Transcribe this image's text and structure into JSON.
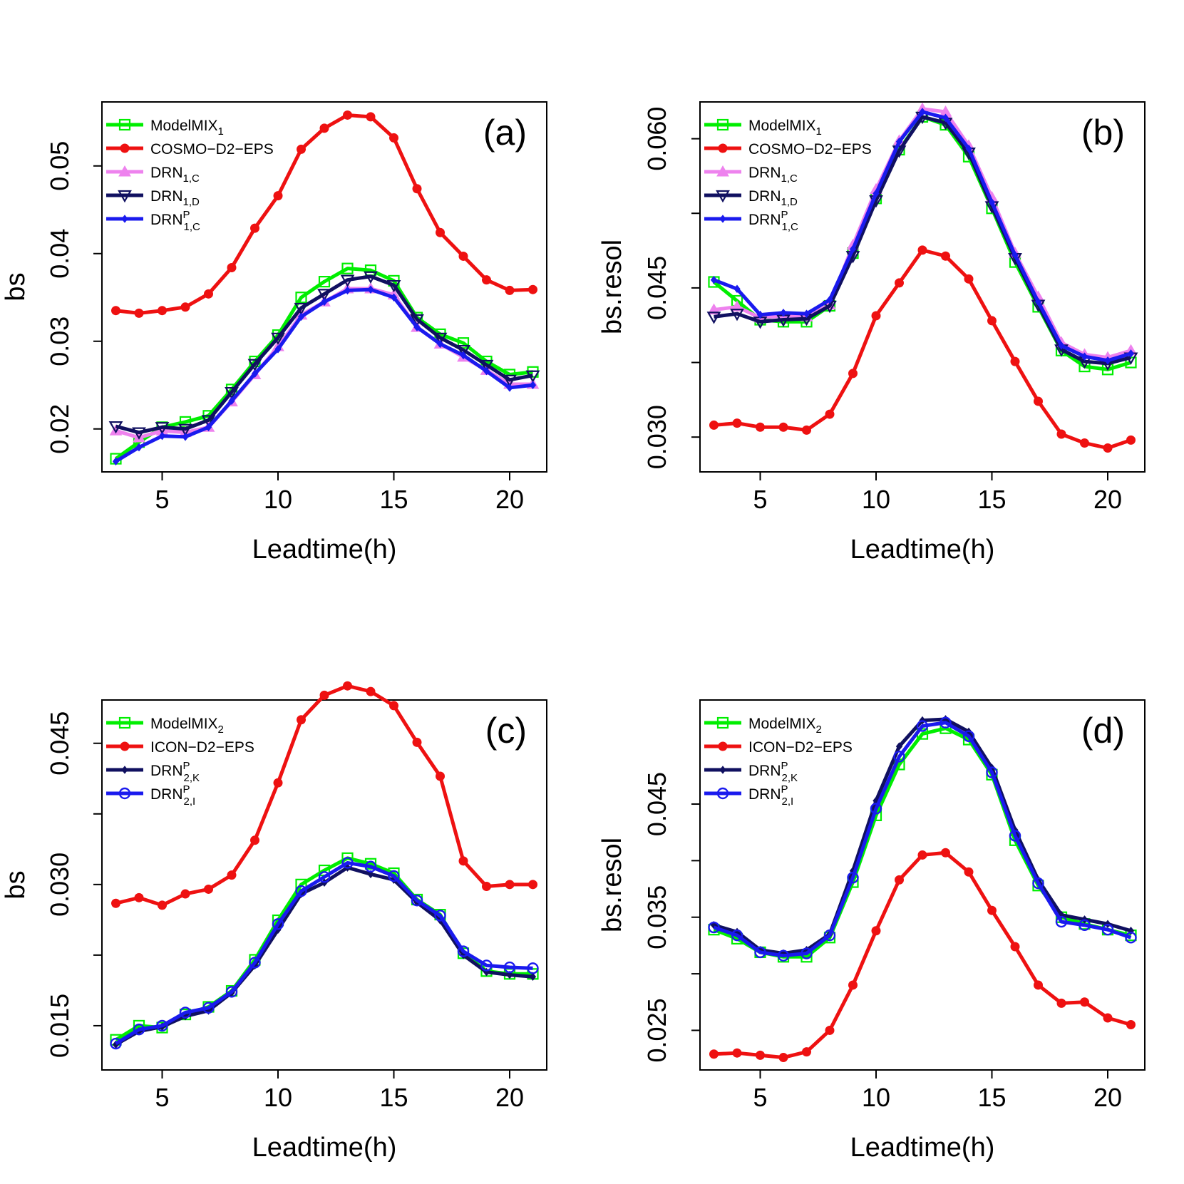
{
  "chart_data": [
    {
      "type": "line",
      "panel_label": "(a)",
      "xlabel": "Leadtime(h)",
      "ylabel": "bs",
      "x": [
        3,
        4,
        5,
        6,
        7,
        8,
        9,
        10,
        11,
        12,
        13,
        14,
        15,
        16,
        17,
        18,
        19,
        20,
        21
      ],
      "xticks": [
        5,
        10,
        15,
        20
      ],
      "yticks": [
        "0.02",
        "0.03",
        "0.04",
        "0.05"
      ],
      "xlim": [
        2.4,
        21.6
      ],
      "ylim": [
        0.0151,
        0.0573
      ],
      "legend_position": "top-left",
      "series": [
        {
          "name": "ModelMIX",
          "sub": "1",
          "sup": "",
          "color": "#00ee00",
          "marker": "square-open",
          "values": [
            0.0166,
            0.0185,
            0.0202,
            0.0208,
            0.0215,
            0.0245,
            0.0277,
            0.0307,
            0.035,
            0.0368,
            0.0383,
            0.0381,
            0.0369,
            0.0327,
            0.0308,
            0.0298,
            0.0277,
            0.0262,
            0.0265
          ]
        },
        {
          "name": "COSMO−D2−EPS",
          "sub": "",
          "sup": "",
          "color": "#ee1111",
          "marker": "circle-filled",
          "values": [
            0.0335,
            0.0332,
            0.0335,
            0.0339,
            0.0354,
            0.0384,
            0.0429,
            0.0466,
            0.0519,
            0.0543,
            0.0558,
            0.0556,
            0.0532,
            0.0474,
            0.0424,
            0.0397,
            0.037,
            0.0358,
            0.0359
          ]
        },
        {
          "name": "DRN",
          "sub": "1,C",
          "sup": "",
          "color": "#ee82ee",
          "marker": "triangle-up-filled",
          "values": [
            0.0198,
            0.019,
            0.0198,
            0.0196,
            0.0202,
            0.0231,
            0.0262,
            0.0294,
            0.033,
            0.0345,
            0.036,
            0.036,
            0.0353,
            0.0316,
            0.0297,
            0.0282,
            0.0267,
            0.0251,
            0.0251
          ]
        },
        {
          "name": "DRN",
          "sub": "1,D",
          "sup": "",
          "color": "#101060",
          "marker": "triangle-down-open",
          "values": [
            0.0203,
            0.0196,
            0.0202,
            0.02,
            0.021,
            0.0242,
            0.0274,
            0.0304,
            0.0338,
            0.0354,
            0.037,
            0.0374,
            0.0364,
            0.0325,
            0.0304,
            0.029,
            0.0273,
            0.0256,
            0.0261
          ]
        },
        {
          "name": "DRN",
          "sub": "1,C",
          "sup": "P",
          "color": "#1a1aee",
          "marker": "diamond-small",
          "values": [
            0.0163,
            0.0179,
            0.0192,
            0.0191,
            0.0202,
            0.0232,
            0.0263,
            0.0291,
            0.0328,
            0.0345,
            0.0358,
            0.0359,
            0.035,
            0.0316,
            0.0297,
            0.0284,
            0.0266,
            0.0247,
            0.025
          ]
        }
      ]
    },
    {
      "type": "line",
      "panel_label": "(b)",
      "xlabel": "Leadtime(h)",
      "ylabel": "bs.resol",
      "x": [
        3,
        4,
        5,
        6,
        7,
        8,
        9,
        10,
        11,
        12,
        13,
        14,
        15,
        16,
        17,
        18,
        19,
        20,
        21
      ],
      "xticks": [
        5,
        10,
        15,
        20
      ],
      "yticks": [
        "0.030",
        "",
        "0.045",
        "",
        "0.060"
      ],
      "ytick_values": [
        0.03,
        0.0375,
        0.045,
        0.0525,
        0.06
      ],
      "xlim": [
        2.4,
        21.6
      ],
      "ylim": [
        0.0265,
        0.0637
      ],
      "legend_position": "top-left",
      "series": [
        {
          "name": "ModelMIX",
          "sub": "1",
          "sup": "",
          "color": "#00ee00",
          "marker": "square-open",
          "values": [
            0.0456,
            0.0437,
            0.0418,
            0.0416,
            0.0416,
            0.0432,
            0.0485,
            0.054,
            0.0589,
            0.0622,
            0.0614,
            0.0582,
            0.053,
            0.0476,
            0.0431,
            0.0387,
            0.0371,
            0.0368,
            0.0375
          ]
        },
        {
          "name": "COSMO−D2−EPS",
          "sub": "",
          "sup": "",
          "color": "#ee1111",
          "marker": "circle-filled",
          "values": [
            0.0312,
            0.0314,
            0.031,
            0.031,
            0.0307,
            0.0323,
            0.0364,
            0.0422,
            0.0455,
            0.0488,
            0.0482,
            0.0459,
            0.0417,
            0.0376,
            0.0336,
            0.0303,
            0.0294,
            0.0289,
            0.0297
          ]
        },
        {
          "name": "DRN",
          "sub": "1,C",
          "sup": "",
          "color": "#ee82ee",
          "marker": "triangle-up-filled",
          "values": [
            0.0428,
            0.0431,
            0.042,
            0.0422,
            0.0421,
            0.0433,
            0.0493,
            0.0549,
            0.0598,
            0.063,
            0.0627,
            0.0593,
            0.0541,
            0.0485,
            0.0441,
            0.0395,
            0.0383,
            0.038,
            0.0387
          ]
        },
        {
          "name": "DRN",
          "sub": "1,D",
          "sup": "",
          "color": "#101060",
          "marker": "triangle-down-open",
          "values": [
            0.0421,
            0.0424,
            0.0416,
            0.0418,
            0.0419,
            0.0432,
            0.0482,
            0.0538,
            0.0588,
            0.0622,
            0.0616,
            0.0586,
            0.0532,
            0.048,
            0.0433,
            0.0388,
            0.0376,
            0.0374,
            0.038
          ]
        },
        {
          "name": "DRN",
          "sub": "1,C",
          "sup": "P",
          "color": "#1a1aee",
          "marker": "diamond-small",
          "values": [
            0.0458,
            0.0449,
            0.0423,
            0.0425,
            0.0424,
            0.0438,
            0.0489,
            0.0545,
            0.0597,
            0.0627,
            0.0621,
            0.059,
            0.0536,
            0.0483,
            0.0436,
            0.0392,
            0.0381,
            0.0377,
            0.0384
          ]
        }
      ]
    },
    {
      "type": "line",
      "panel_label": "(c)",
      "xlabel": "Leadtime(h)",
      "ylabel": "bs",
      "x": [
        3,
        4,
        5,
        6,
        7,
        8,
        9,
        10,
        11,
        12,
        13,
        14,
        15,
        16,
        17,
        18,
        19,
        20,
        21
      ],
      "xticks": [
        5,
        10,
        15,
        20
      ],
      "yticks": [
        "0.015",
        "",
        "0.030",
        "",
        "0.045"
      ],
      "ytick_values": [
        0.015,
        0.0225,
        0.03,
        0.0375,
        0.045
      ],
      "xlim": [
        2.4,
        21.6
      ],
      "ylim": [
        0.0103,
        0.0496
      ],
      "legend_position": "top-left",
      "series": [
        {
          "name": "ModelMIX",
          "sub": "2",
          "sup": "",
          "color": "#00ee00",
          "marker": "square-open",
          "values": [
            0.0135,
            0.015,
            0.0148,
            0.0162,
            0.017,
            0.0187,
            0.022,
            0.0262,
            0.03,
            0.0315,
            0.0328,
            0.0322,
            0.0312,
            0.0284,
            0.0268,
            0.0227,
            0.0208,
            0.0205,
            0.0205
          ]
        },
        {
          "name": "ICON−D2−EPS",
          "sub": "",
          "sup": "",
          "color": "#ee1111",
          "marker": "circle-filled",
          "values": [
            0.028,
            0.0286,
            0.0278,
            0.029,
            0.0295,
            0.031,
            0.0347,
            0.0408,
            0.0475,
            0.0501,
            0.0511,
            0.0505,
            0.049,
            0.0451,
            0.0415,
            0.0325,
            0.0298,
            0.03,
            0.03
          ]
        },
        {
          "name": "DRN",
          "sub": "2,K",
          "sup": "P",
          "color": "#101060",
          "marker": "diamond-small",
          "values": [
            0.013,
            0.0144,
            0.0149,
            0.016,
            0.0166,
            0.0185,
            0.0214,
            0.0252,
            0.029,
            0.0302,
            0.0318,
            0.0311,
            0.0305,
            0.0281,
            0.0262,
            0.0225,
            0.0207,
            0.0204,
            0.0202
          ]
        },
        {
          "name": "DRN",
          "sub": "2,I",
          "sup": "P",
          "color": "#1a1aee",
          "marker": "circle-open",
          "values": [
            0.0131,
            0.0146,
            0.015,
            0.0164,
            0.0169,
            0.0186,
            0.0217,
            0.0258,
            0.0293,
            0.0308,
            0.0323,
            0.0319,
            0.0309,
            0.0283,
            0.0267,
            0.0229,
            0.0214,
            0.0212,
            0.0211
          ]
        }
      ]
    },
    {
      "type": "line",
      "panel_label": "(d)",
      "xlabel": "Leadtime(h)",
      "ylabel": "bs.resol",
      "x": [
        3,
        4,
        5,
        6,
        7,
        8,
        9,
        10,
        11,
        12,
        13,
        14,
        15,
        16,
        17,
        18,
        19,
        20,
        21
      ],
      "xticks": [
        5,
        10,
        15,
        20
      ],
      "yticks": [
        "0.025",
        "",
        "0.035",
        "",
        "0.045"
      ],
      "ytick_values": [
        0.025,
        0.03,
        0.035,
        0.04,
        0.045
      ],
      "xlim": [
        2.4,
        21.6
      ],
      "ylim": [
        0.0215,
        0.0542
      ],
      "legend_position": "top-left",
      "series": [
        {
          "name": "ModelMIX",
          "sub": "2",
          "sup": "",
          "color": "#00ee00",
          "marker": "square-open",
          "values": [
            0.0339,
            0.0331,
            0.0319,
            0.0315,
            0.0315,
            0.0332,
            0.0381,
            0.044,
            0.0485,
            0.0512,
            0.0517,
            0.0507,
            0.0476,
            0.0418,
            0.0378,
            0.035,
            0.0344,
            0.0339,
            0.0334
          ]
        },
        {
          "name": "ICON−D2−EPS",
          "sub": "",
          "sup": "",
          "color": "#ee1111",
          "marker": "circle-filled",
          "values": [
            0.0229,
            0.023,
            0.0228,
            0.0226,
            0.0231,
            0.025,
            0.029,
            0.0338,
            0.0383,
            0.0405,
            0.0407,
            0.039,
            0.0356,
            0.0324,
            0.029,
            0.0274,
            0.0275,
            0.0261,
            0.0255
          ]
        },
        {
          "name": "DRN",
          "sub": "2,K",
          "sup": "P",
          "color": "#101060",
          "marker": "diamond-small",
          "values": [
            0.0343,
            0.0337,
            0.0321,
            0.0318,
            0.0321,
            0.0335,
            0.0391,
            0.0453,
            0.0501,
            0.0524,
            0.0525,
            0.0514,
            0.0482,
            0.0427,
            0.0383,
            0.0352,
            0.0348,
            0.0344,
            0.0338
          ]
        },
        {
          "name": "DRN",
          "sub": "2,I",
          "sup": "P",
          "color": "#1a1aee",
          "marker": "circle-open",
          "values": [
            0.0341,
            0.0334,
            0.0319,
            0.0316,
            0.0318,
            0.0334,
            0.0385,
            0.0446,
            0.0492,
            0.0519,
            0.0522,
            0.051,
            0.0478,
            0.0422,
            0.038,
            0.0346,
            0.0343,
            0.0339,
            0.0332
          ]
        }
      ]
    }
  ]
}
